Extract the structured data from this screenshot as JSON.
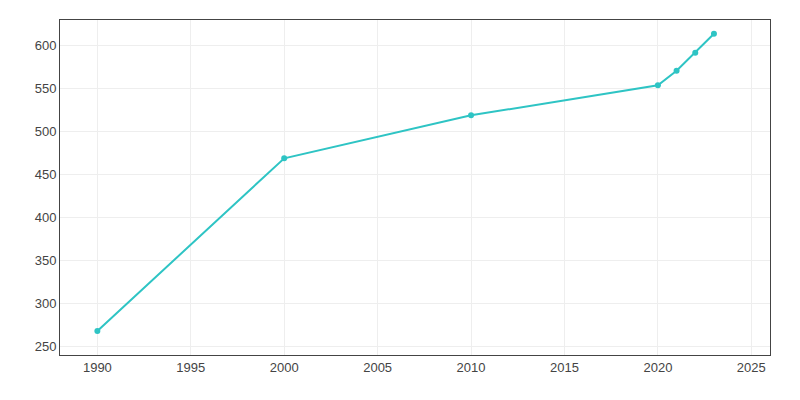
{
  "chart_data": {
    "type": "line",
    "x": [
      1990,
      2000,
      2010,
      2020,
      2021,
      2022,
      2023
    ],
    "values": [
      268,
      469,
      519,
      554,
      571,
      592,
      614
    ],
    "color": "#2ec4c4",
    "marker": "circle",
    "xlim": [
      1988,
      2026
    ],
    "ylim": [
      240,
      630
    ],
    "xticks": [
      1990,
      1995,
      2000,
      2005,
      2010,
      2015,
      2020,
      2025
    ],
    "yticks": [
      250,
      300,
      350,
      400,
      450,
      500,
      550,
      600
    ],
    "grid": true
  }
}
